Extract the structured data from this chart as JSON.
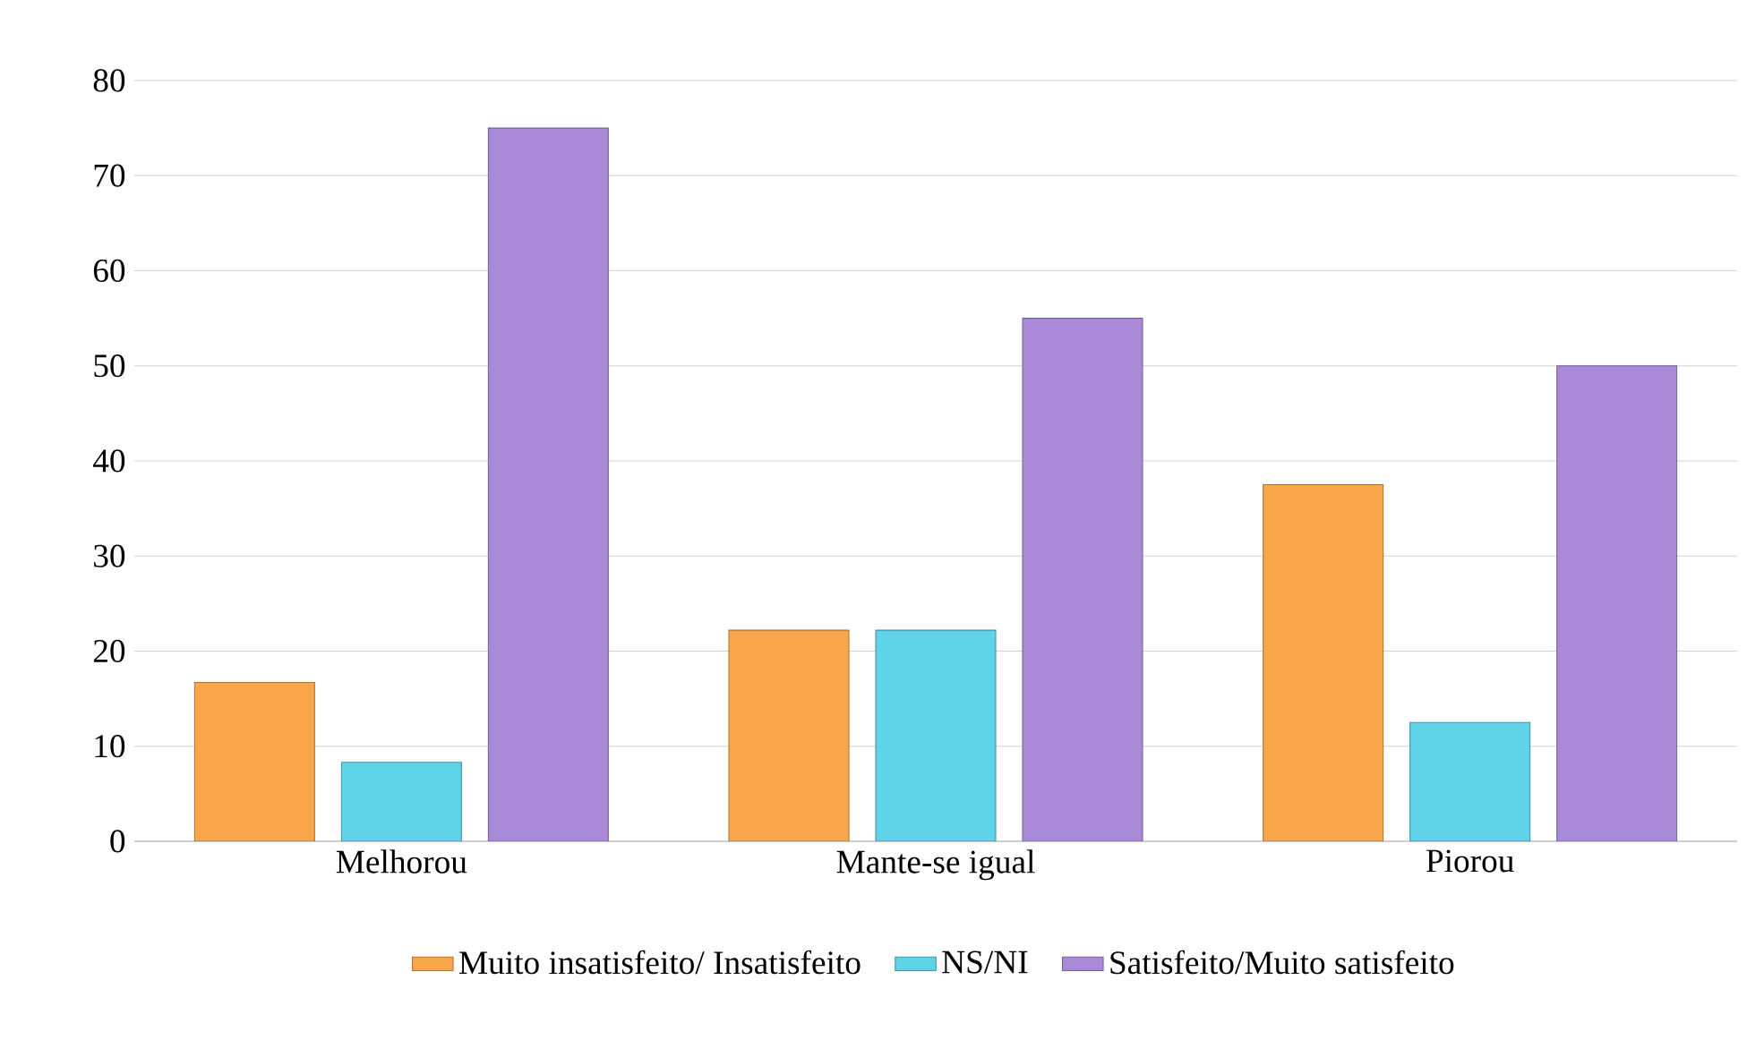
{
  "chart_data": {
    "type": "bar",
    "categories": [
      "Melhorou",
      "Mante-se igual",
      "Piorou"
    ],
    "series": [
      {
        "name": "Muito insatisfeito/ Insatisfeito",
        "color": "#f9a64a",
        "values": [
          16.7,
          22.2,
          37.5
        ]
      },
      {
        "name": "NS/NI",
        "color": "#5fd3e8",
        "values": [
          8.3,
          22.2,
          12.5
        ]
      },
      {
        "name": "Satisfeito/Muito satisfeito",
        "color": "#a98ad8",
        "values": [
          75,
          55,
          50
        ]
      }
    ],
    "ylim": [
      0,
      80
    ],
    "yticks": [
      0,
      10,
      20,
      30,
      40,
      50,
      60,
      70,
      80
    ],
    "grid": "y",
    "legend": "bottom"
  }
}
